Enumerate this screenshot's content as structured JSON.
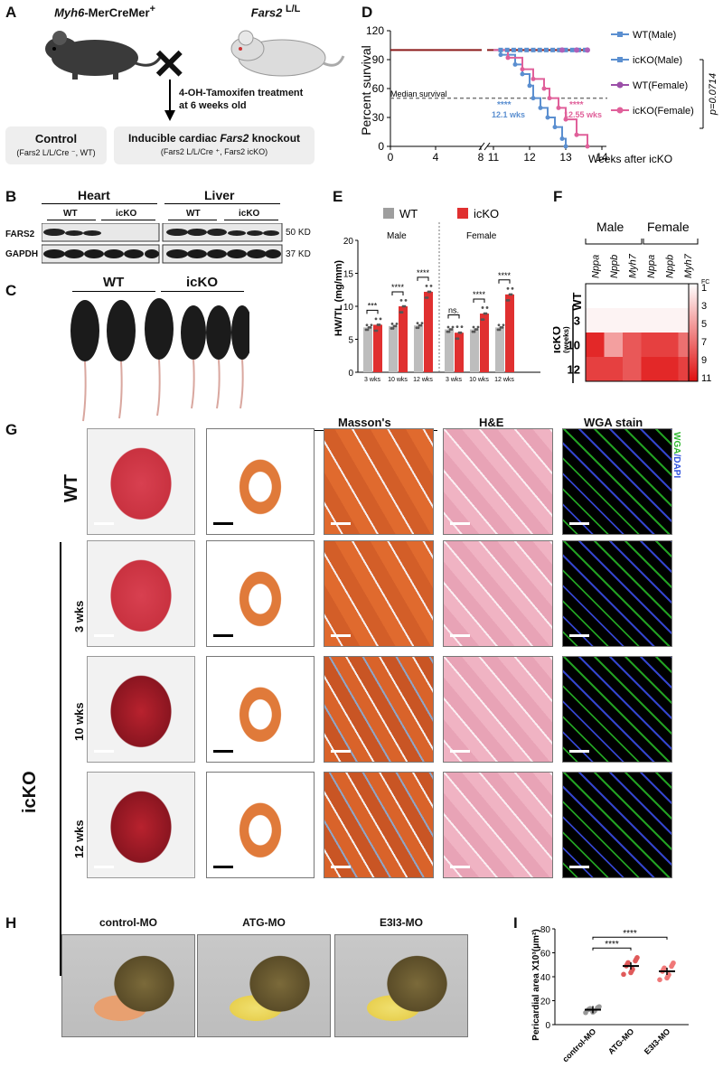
{
  "panels": {
    "A": "A",
    "B": "B",
    "C": "C",
    "D": "D",
    "E": "E",
    "F": "F",
    "G": "G",
    "H": "H",
    "I": "I"
  },
  "panelA": {
    "mouse1_gene": "Myh6",
    "mouse1_rest": "-MerCreMer",
    "mouse1_sup": "+",
    "mouse2_gene": "Fars2",
    "mouse2_sup": "L/L",
    "cross": "✕",
    "treatment_line1": "4-OH-Tamoxifen treatment",
    "treatment_line2": "at 6 weeks old",
    "control_title": "Control",
    "control_sub": "(Fars2 L/L/Cre ⁻, WT)",
    "ko_title_pre": "Inducible cardiac ",
    "ko_title_gene": "Fars2",
    "ko_title_post": " knockout",
    "ko_sub": "(Fars2 L/L/Cre ⁺, Fars2 icKO)"
  },
  "panelB": {
    "heart": "Heart",
    "liver": "Liver",
    "wt1": "WT",
    "icko1": "icKO",
    "wt2": "WT",
    "icko2": "icKO",
    "row1": "FARS2",
    "row2": "GAPDH",
    "kd1": "50 KD",
    "kd2": "37 KD"
  },
  "panelC": {
    "wt": "WT",
    "icko": "icKO"
  },
  "panelD": {
    "ylabel": "Percent survival",
    "xlabel": "Weeks after icKO",
    "median": "Median survival",
    "ann1_stars": "****",
    "ann1_val": "12.1 wks",
    "ann2_stars": "****",
    "ann2_val": "12.55 wks",
    "pval": "p=0.0714",
    "legend": [
      "WT(Male)",
      "icKO(Male)",
      "WT(Female)",
      "icKO(Female)"
    ]
  },
  "panelE": {
    "ylabel": "HW/TL (mg/mm)",
    "legend_wt": "WT",
    "legend_icko": "icKO",
    "male": "Male",
    "female": "Female",
    "sig": [
      "***",
      "****",
      "****",
      "ns.",
      "****",
      "****"
    ]
  },
  "panelF": {
    "male": "Male",
    "female": "Female",
    "genes": [
      "Nppa",
      "Nppb",
      "Myh7",
      "Nppa",
      "Nppb",
      "Myh7"
    ],
    "rows": [
      "WT",
      "3",
      "10",
      "12"
    ],
    "icko": "icKO",
    "weeks": "(weeks)",
    "fc": "FC",
    "scale": [
      "1",
      "3",
      "5",
      "7",
      "9",
      "11"
    ]
  },
  "panelG": {
    "col_massons": "Masson's",
    "col_he": "H&E",
    "col_wga": "WGA stain",
    "wga_label1": "WGA",
    "wga_label2": "/DAPI",
    "row_wt": "WT",
    "row_3": "3 wks",
    "row_10": "10 wks",
    "row_12": "12 wks",
    "icko": "icKO"
  },
  "panelH": {
    "labels": [
      "control-MO",
      "ATG-MO",
      "E3I3-MO"
    ]
  },
  "panelI": {
    "ylabel": "Pericardial area X10³(μm²)",
    "groups": [
      "control-MO",
      "ATG-MO",
      "E3I3-MO"
    ],
    "sig": [
      "****",
      "****"
    ]
  },
  "colors": {
    "wt": "#9e9e9e",
    "icko": "#e03030",
    "male_line": "#5b8fd0",
    "female_line": "#e0609a",
    "wt_line": "#8b1a1a"
  },
  "chart_data": [
    {
      "type": "line",
      "title": "",
      "xlabel": "Weeks after icKO",
      "ylabel": "Percent survival",
      "xlim": [
        0,
        14
      ],
      "ylim": [
        0,
        120
      ],
      "x_ticks": [
        0,
        4,
        8,
        11,
        12,
        13,
        14
      ],
      "y_ticks": [
        0,
        30,
        60,
        90,
        120
      ],
      "series": [
        {
          "name": "WT(Male)",
          "x": [
            0,
            14
          ],
          "y": [
            100,
            100
          ]
        },
        {
          "name": "icKO(Male)",
          "x": [
            0,
            11.2,
            11.6,
            11.8,
            12.0,
            12.1,
            12.3,
            12.5,
            12.7,
            12.9,
            13.0
          ],
          "y": [
            100,
            95,
            85,
            75,
            63,
            50,
            40,
            30,
            20,
            8,
            0
          ]
        },
        {
          "name": "WT(Female)",
          "x": [
            0,
            14
          ],
          "y": [
            100,
            100
          ]
        },
        {
          "name": "icKO(Female)",
          "x": [
            0,
            11.4,
            11.8,
            12.1,
            12.4,
            12.55,
            12.8,
            13.0,
            13.3,
            13.6
          ],
          "y": [
            100,
            92,
            80,
            70,
            60,
            50,
            40,
            28,
            12,
            0
          ]
        }
      ],
      "median_survival": {
        "icKO(Male)": "12.1 wks",
        "icKO(Female)": "12.55 wks"
      }
    },
    {
      "type": "bar",
      "ylabel": "HW/TL (mg/mm)",
      "ylim": [
        0,
        20
      ],
      "y_ticks": [
        0,
        5,
        10,
        15,
        20
      ],
      "categories": [
        "3 wks",
        "10 wks",
        "12 wks",
        "3 wks",
        "10 wks",
        "12 wks"
      ],
      "groups": [
        "Male",
        "Male",
        "Male",
        "Female",
        "Female",
        "Female"
      ],
      "series": [
        {
          "name": "WT",
          "values": [
            6.8,
            7.0,
            7.1,
            6.5,
            6.5,
            6.8
          ]
        },
        {
          "name": "icKO",
          "values": [
            7.2,
            10.0,
            12.2,
            6.0,
            8.9,
            11.8
          ]
        }
      ]
    },
    {
      "type": "heatmap",
      "columns": [
        "Nppa",
        "Nppb",
        "Myh7",
        "Nppa",
        "Nppb",
        "Myh7"
      ],
      "rows": [
        "WT",
        "3",
        "10",
        "12"
      ],
      "values": [
        [
          1,
          1,
          1,
          1,
          1,
          1
        ],
        [
          1.5,
          1.5,
          1.5,
          1.5,
          1.5,
          1.5
        ],
        [
          10,
          5,
          8,
          9,
          9,
          7
        ],
        [
          9,
          9,
          8,
          10,
          10,
          9
        ]
      ],
      "scale_range": [
        1,
        11
      ]
    },
    {
      "type": "scatter",
      "ylabel": "Pericardial area X10³(μm²)",
      "ylim": [
        0,
        80
      ],
      "y_ticks": [
        0,
        20,
        40,
        60,
        80
      ],
      "categories": [
        "control-MO",
        "ATG-MO",
        "E3I3-MO"
      ],
      "means": [
        12.5,
        49,
        44.5
      ]
    }
  ]
}
